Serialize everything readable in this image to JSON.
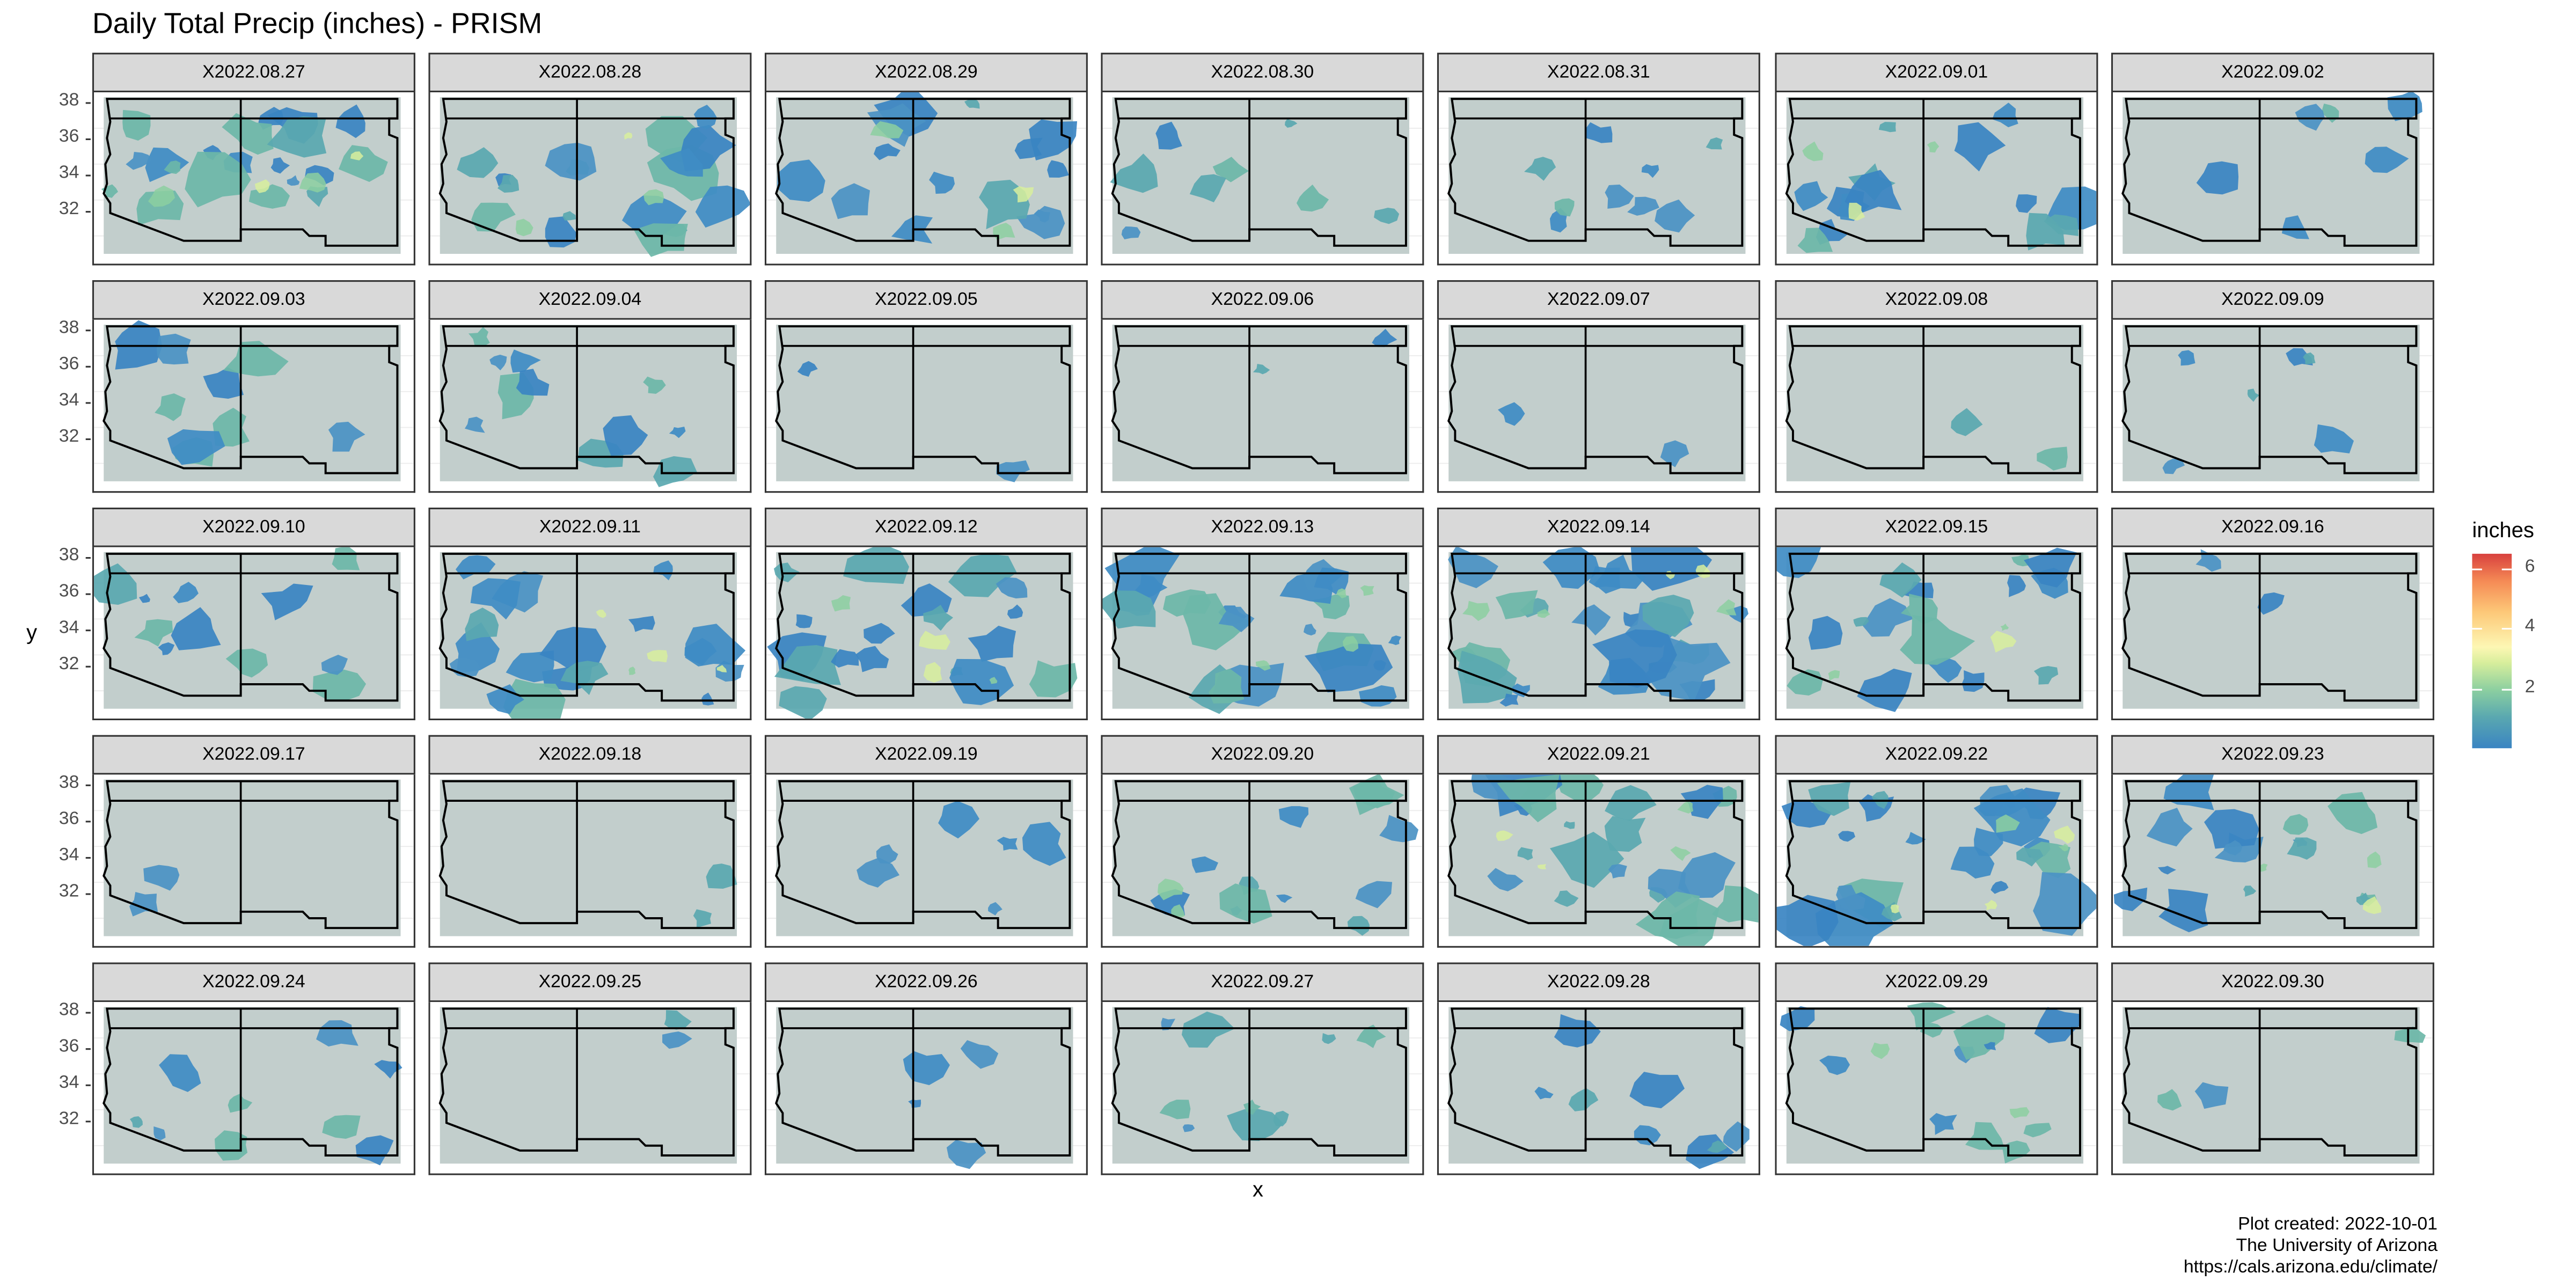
{
  "title": "Daily Total Precip (inches) - PRISM",
  "x_axis_label": "x",
  "y_axis_label": "y",
  "y_ticks": [
    "38",
    "36",
    "34",
    "32"
  ],
  "legend": {
    "title": "inches",
    "ticks": [
      "6",
      "4",
      "2"
    ],
    "tick_values": [
      6,
      4,
      2
    ],
    "range": [
      0,
      6.5
    ]
  },
  "caption": [
    "Plot created: 2022-10-01",
    "The University of Arizona",
    "https://cals.arizona.edu/climate/"
  ],
  "colors": {
    "background": "#c2cecc",
    "low": "#3a84c2",
    "mid": "#fdf7b4",
    "high": "#d8403e",
    "strip": "#d9d9d9"
  },
  "panels": [
    {
      "label": "X2022.08.27",
      "coverage": 0.65
    },
    {
      "label": "X2022.08.28",
      "coverage": 0.55
    },
    {
      "label": "X2022.08.29",
      "coverage": 0.45
    },
    {
      "label": "X2022.08.30",
      "coverage": 0.25
    },
    {
      "label": "X2022.08.31",
      "coverage": 0.3
    },
    {
      "label": "X2022.09.01",
      "coverage": 0.45
    },
    {
      "label": "X2022.09.02",
      "coverage": 0.2
    },
    {
      "label": "X2022.09.03",
      "coverage": 0.3
    },
    {
      "label": "X2022.09.04",
      "coverage": 0.35
    },
    {
      "label": "X2022.09.05",
      "coverage": 0.05
    },
    {
      "label": "X2022.09.06",
      "coverage": 0.05
    },
    {
      "label": "X2022.09.07",
      "coverage": 0.04
    },
    {
      "label": "X2022.09.08",
      "coverage": 0.04
    },
    {
      "label": "X2022.09.09",
      "coverage": 0.2
    },
    {
      "label": "X2022.09.10",
      "coverage": 0.35
    },
    {
      "label": "X2022.09.11",
      "coverage": 0.6
    },
    {
      "label": "X2022.09.12",
      "coverage": 0.6
    },
    {
      "label": "X2022.09.13",
      "coverage": 0.7
    },
    {
      "label": "X2022.09.14",
      "coverage": 0.75
    },
    {
      "label": "X2022.09.15",
      "coverage": 0.55
    },
    {
      "label": "X2022.09.16",
      "coverage": 0.06
    },
    {
      "label": "X2022.09.17",
      "coverage": 0.04
    },
    {
      "label": "X2022.09.18",
      "coverage": 0.03
    },
    {
      "label": "X2022.09.19",
      "coverage": 0.2
    },
    {
      "label": "X2022.09.20",
      "coverage": 0.4
    },
    {
      "label": "X2022.09.21",
      "coverage": 0.7
    },
    {
      "label": "X2022.09.22",
      "coverage": 0.75
    },
    {
      "label": "X2022.09.23",
      "coverage": 0.5
    },
    {
      "label": "X2022.09.24",
      "coverage": 0.3
    },
    {
      "label": "X2022.09.25",
      "coverage": 0.05
    },
    {
      "label": "X2022.09.26",
      "coverage": 0.12
    },
    {
      "label": "X2022.09.27",
      "coverage": 0.3
    },
    {
      "label": "X2022.09.28",
      "coverage": 0.25
    },
    {
      "label": "X2022.09.29",
      "coverage": 0.4
    },
    {
      "label": "X2022.09.30",
      "coverage": 0.1
    }
  ]
}
